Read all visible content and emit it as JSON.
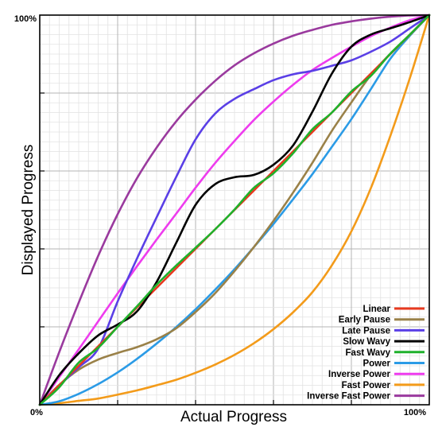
{
  "chart_data": {
    "type": "line",
    "title": "",
    "xlabel": "Actual Progress",
    "ylabel": "Displayed Progress",
    "x_ticks": {
      "start": "0%",
      "end": "100%"
    },
    "y_ticks": {
      "start": "0%",
      "end": "100%"
    },
    "xlim": [
      0,
      1
    ],
    "ylim": [
      0,
      1
    ],
    "grid": true,
    "legend_position": "bottom-right",
    "x": [
      0,
      0.05,
      0.1,
      0.15,
      0.2,
      0.25,
      0.3,
      0.35,
      0.4,
      0.45,
      0.5,
      0.55,
      0.6,
      0.65,
      0.7,
      0.75,
      0.8,
      0.85,
      0.9,
      0.95,
      1
    ],
    "series": [
      {
        "name": "Linear",
        "color": "#e8391f",
        "values": [
          0,
          0.05,
          0.1,
          0.15,
          0.2,
          0.25,
          0.3,
          0.35,
          0.4,
          0.45,
          0.5,
          0.55,
          0.6,
          0.65,
          0.7,
          0.75,
          0.8,
          0.85,
          0.9,
          0.95,
          1
        ]
      },
      {
        "name": "Early Pause",
        "color": "#9a8148",
        "values": [
          0,
          0.051,
          0.09,
          0.116,
          0.133,
          0.148,
          0.168,
          0.196,
          0.238,
          0.286,
          0.343,
          0.405,
          0.472,
          0.544,
          0.621,
          0.703,
          0.776,
          0.846,
          0.901,
          0.949,
          1
        ]
      },
      {
        "name": "Late Pause",
        "color": "#5a3fe6",
        "values": [
          0,
          0.049,
          0.096,
          0.144,
          0.265,
          0.376,
          0.481,
          0.584,
          0.681,
          0.747,
          0.785,
          0.81,
          0.833,
          0.848,
          0.857,
          0.87,
          0.884,
          0.906,
          0.932,
          0.966,
          1
        ]
      },
      {
        "name": "Slow Wavy",
        "color": "#000000",
        "values": [
          0,
          0.076,
          0.132,
          0.178,
          0.206,
          0.24,
          0.315,
          0.415,
          0.513,
          0.566,
          0.584,
          0.59,
          0.616,
          0.665,
          0.752,
          0.85,
          0.919,
          0.95,
          0.966,
          0.982,
          1
        ]
      },
      {
        "name": "Fast Wavy",
        "color": "#1fb12b",
        "values": [
          0,
          0.045,
          0.108,
          0.146,
          0.2,
          0.253,
          0.308,
          0.357,
          0.403,
          0.45,
          0.501,
          0.557,
          0.594,
          0.645,
          0.707,
          0.75,
          0.804,
          0.844,
          0.901,
          0.95,
          1
        ]
      },
      {
        "name": "Power",
        "color": "#2b9be6",
        "values": [
          0,
          0.009,
          0.028,
          0.053,
          0.083,
          0.118,
          0.157,
          0.199,
          0.245,
          0.295,
          0.348,
          0.405,
          0.464,
          0.527,
          0.592,
          0.662,
          0.733,
          0.81,
          0.888,
          0.947,
          1
        ]
      },
      {
        "name": "Inverse Power",
        "color": "#ee3cee",
        "values": [
          0,
          0.071,
          0.142,
          0.214,
          0.286,
          0.356,
          0.424,
          0.49,
          0.557,
          0.62,
          0.677,
          0.731,
          0.778,
          0.821,
          0.859,
          0.89,
          0.919,
          0.946,
          0.968,
          0.987,
          1
        ]
      },
      {
        "name": "Fast Power",
        "color": "#f39b1a",
        "values": [
          0,
          0.004,
          0.01,
          0.016,
          0.026,
          0.037,
          0.05,
          0.064,
          0.082,
          0.103,
          0.128,
          0.158,
          0.194,
          0.237,
          0.289,
          0.358,
          0.445,
          0.556,
          0.69,
          0.838,
          1
        ]
      },
      {
        "name": "Inverse Fast Power",
        "color": "#9a3a9e",
        "values": [
          0,
          0.135,
          0.262,
          0.382,
          0.489,
          0.582,
          0.66,
          0.727,
          0.783,
          0.831,
          0.871,
          0.902,
          0.927,
          0.947,
          0.962,
          0.975,
          0.984,
          0.991,
          0.996,
          0.999,
          1
        ]
      }
    ]
  }
}
